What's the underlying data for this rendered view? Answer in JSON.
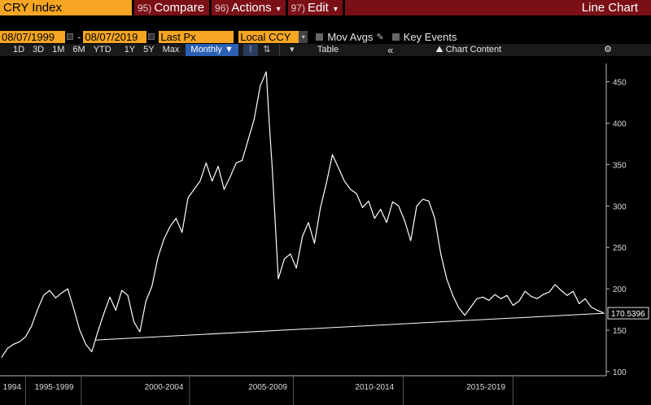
{
  "toolbar": {
    "ticker": "CRY Index",
    "compare": {
      "num": "95)",
      "label": "Compare"
    },
    "actions": {
      "num": "96)",
      "label": "Actions"
    },
    "edit": {
      "num": "97)",
      "label": "Edit"
    },
    "chart_title": "Line Chart"
  },
  "controls": {
    "start_date": "08/07/1999",
    "end_date": "08/07/2019",
    "date_dash": "-",
    "price_field": "Last Px",
    "currency": "Local CCY",
    "mov_avgs": "Mov Avgs",
    "key_events": "Key Events"
  },
  "periods": {
    "items": [
      "1D",
      "3D",
      "1M",
      "6M",
      "YTD",
      "1Y",
      "5Y",
      "Max"
    ],
    "frequency": "Monthly ▼",
    "table": "Table",
    "collapse": "«",
    "chart_content": "Chart Content",
    "settings_icon": "gear-icon"
  },
  "colors": {
    "accent_orange": "#f6a623",
    "header_red": "#7a0f16",
    "line": "#ffffff",
    "selected_blue": "#2a5fb3"
  },
  "chart_data": {
    "type": "line",
    "title": "",
    "xlabel": "",
    "ylabel": "",
    "last_value_label": "170.5396",
    "ylim": [
      95,
      480
    ],
    "xlim": [
      1999.55,
      2019.7
    ],
    "y_ticks": [
      100,
      150,
      200,
      250,
      300,
      350,
      400,
      450
    ],
    "x_tick_labels": [
      {
        "label": "1994",
        "x": 1999.95
      },
      {
        "label": "1995-1999",
        "x": 2001.35
      },
      {
        "label": "2000-2004",
        "x": 2005.0
      },
      {
        "label": "2005-2009",
        "x": 2008.45
      },
      {
        "label": "2010-2014",
        "x": 2012.0
      },
      {
        "label": "2015-2019",
        "x": 2015.7
      }
    ],
    "x_separators": [
      2000.4,
      2002.25,
      2005.85,
      2009.3,
      2012.95,
      2016.6
    ],
    "series": [
      {
        "name": "",
        "x": [
          1999.6,
          1999.8,
          2000.0,
          2000.2,
          2000.4,
          2000.6,
          2000.8,
          2001.0,
          2001.2,
          2001.4,
          2001.6,
          2001.8,
          2002.0,
          2002.2,
          2002.4,
          2002.6,
          2002.8,
          2003.0,
          2003.2,
          2003.4,
          2003.6,
          2003.8,
          2004.0,
          2004.2,
          2004.4,
          2004.6,
          2004.8,
          2005.0,
          2005.2,
          2005.4,
          2005.6,
          2005.8,
          2006.0,
          2006.2,
          2006.4,
          2006.6,
          2006.8,
          2007.0,
          2007.2,
          2007.4,
          2007.6,
          2007.8,
          2008.0,
          2008.2,
          2008.4,
          2008.5,
          2008.6,
          2008.8,
          2009.0,
          2009.2,
          2009.4,
          2009.6,
          2009.8,
          2010.0,
          2010.2,
          2010.4,
          2010.6,
          2010.8,
          2011.0,
          2011.2,
          2011.4,
          2011.6,
          2011.8,
          2012.0,
          2012.2,
          2012.4,
          2012.6,
          2012.8,
          2013.0,
          2013.2,
          2013.4,
          2013.6,
          2013.8,
          2014.0,
          2014.2,
          2014.4,
          2014.6,
          2014.8,
          2015.0,
          2015.2,
          2015.4,
          2015.6,
          2015.8,
          2016.0,
          2016.2,
          2016.4,
          2016.6,
          2016.8,
          2017.0,
          2017.2,
          2017.4,
          2017.6,
          2017.8,
          2018.0,
          2018.2,
          2018.4,
          2018.6,
          2018.8,
          2019.0,
          2019.2,
          2019.4,
          2019.6
        ],
        "y": [
          117,
          128,
          133,
          136,
          142,
          155,
          175,
          192,
          198,
          189,
          195,
          200,
          176,
          150,
          133,
          124,
          148,
          170,
          190,
          174,
          198,
          192,
          160,
          148,
          185,
          203,
          238,
          260,
          275,
          285,
          268,
          310,
          320,
          330,
          352,
          330,
          348,
          320,
          335,
          352,
          355,
          380,
          405,
          445,
          462,
          400,
          345,
          212,
          236,
          242,
          225,
          263,
          280,
          255,
          298,
          328,
          362,
          346,
          330,
          320,
          315,
          298,
          306,
          285,
          296,
          280,
          305,
          300,
          282,
          258,
          300,
          308,
          306,
          285,
          242,
          212,
          192,
          177,
          168,
          178,
          188,
          190,
          186,
          193,
          188,
          192,
          180,
          185,
          197,
          191,
          188,
          193,
          196,
          205,
          198,
          192,
          197,
          182,
          188,
          178,
          174,
          171
        ]
      },
      {
        "name": "",
        "kind": "trendline",
        "x": [
          2002.7,
          2019.65
        ],
        "y": [
          138,
          170.5
        ]
      }
    ],
    "grid": false,
    "legend": "none"
  }
}
